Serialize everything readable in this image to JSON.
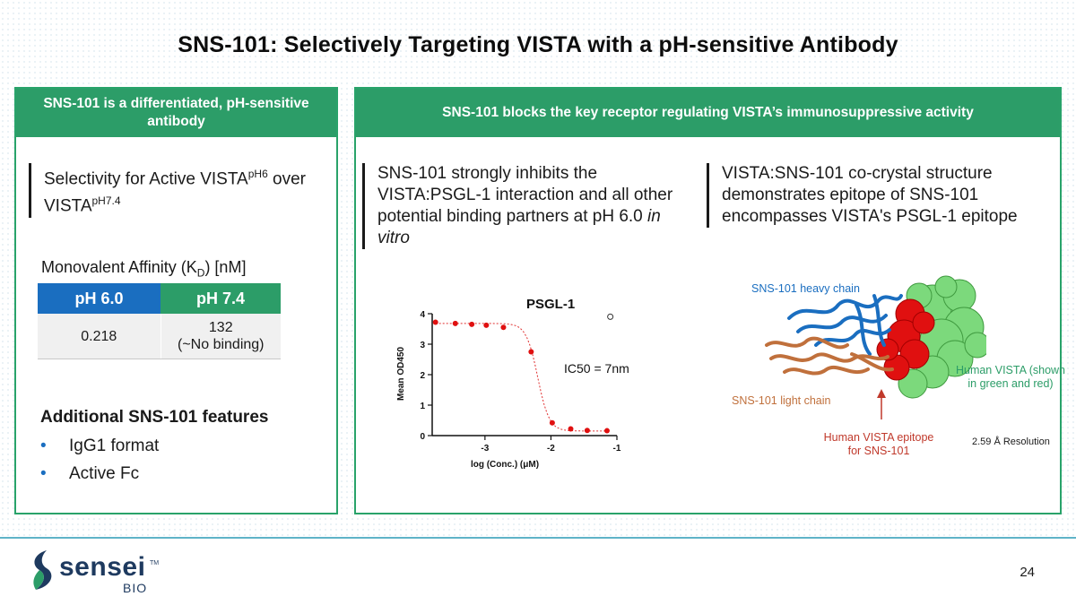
{
  "title": "SNS-101: Selectively Targeting VISTA with a pH-sensitive Antibody",
  "left_panel": {
    "header": "SNS-101 is a differentiated, pH-sensitive antibody",
    "selectivity": {
      "prefix": "Selectivity for Active VISTA",
      "sup1": "pH6",
      "middle": " over VISTA",
      "sup2": "pH7.4"
    },
    "affinity": {
      "label_prefix": "Monovalent Affinity (K",
      "label_sub": "D",
      "label_suffix": ") [nM]",
      "headers": [
        "pH 6.0",
        "pH 7.4"
      ],
      "value_ph6": "0.218",
      "value_ph74_line1": "132",
      "value_ph74_line2": "(~No binding)"
    },
    "features_title": "Additional SNS-101 features",
    "features": [
      "IgG1 format",
      "Active Fc"
    ]
  },
  "right_panel": {
    "header": "SNS-101 blocks the key receptor regulating VISTA’s immunosuppressive activity",
    "text1": "SNS-101 strongly inhibits the VISTA:PSGL-1 interaction and all other potential binding partners at pH 6.0 ",
    "text1_italic": "in vitro",
    "text2": "VISTA:SNS-101 co-crystal structure demonstrates epitope of SNS-101 encompasses VISTA's PSGL-1 epitope",
    "structure": {
      "heavy_chain": "SNS-101 heavy chain",
      "light_chain": "SNS-101 light chain",
      "human_vista": "Human VISTA (shown in green and red)",
      "epitope": "Human VISTA epitope for SNS-101",
      "resolution": "2.59 Å Resolution",
      "colors": {
        "heavy": "#1a6ec0",
        "light": "#c0703c",
        "vista": "#7cd97c",
        "epitope": "#e01010"
      }
    }
  },
  "chart_data": {
    "type": "scatter",
    "title": "PSGL-1",
    "xlabel": "log (Conc.) (μM)",
    "ylabel": "Mean OD450",
    "xlim": [
      -3.8,
      -1
    ],
    "ylim": [
      0,
      4
    ],
    "xticks": [
      "-3",
      "-2",
      "-1"
    ],
    "yticks": [
      "0",
      "1",
      "2",
      "3",
      "4"
    ],
    "annotation": "IC50 = 7nm",
    "points": [
      {
        "x": -3.75,
        "y": 3.72
      },
      {
        "x": -3.45,
        "y": 3.68
      },
      {
        "x": -3.2,
        "y": 3.65
      },
      {
        "x": -2.98,
        "y": 3.62
      },
      {
        "x": -2.72,
        "y": 3.55
      },
      {
        "x": -2.3,
        "y": 2.75
      },
      {
        "x": -1.98,
        "y": 0.42
      },
      {
        "x": -1.7,
        "y": 0.22
      },
      {
        "x": -1.45,
        "y": 0.17
      },
      {
        "x": -1.15,
        "y": 0.16
      }
    ],
    "outlier": {
      "x": -1.1,
      "y": 3.9
    }
  },
  "footer": {
    "logo_word": "sensei",
    "logo_sub": "BIO",
    "logo_tm": "TM",
    "page_number": "24"
  }
}
